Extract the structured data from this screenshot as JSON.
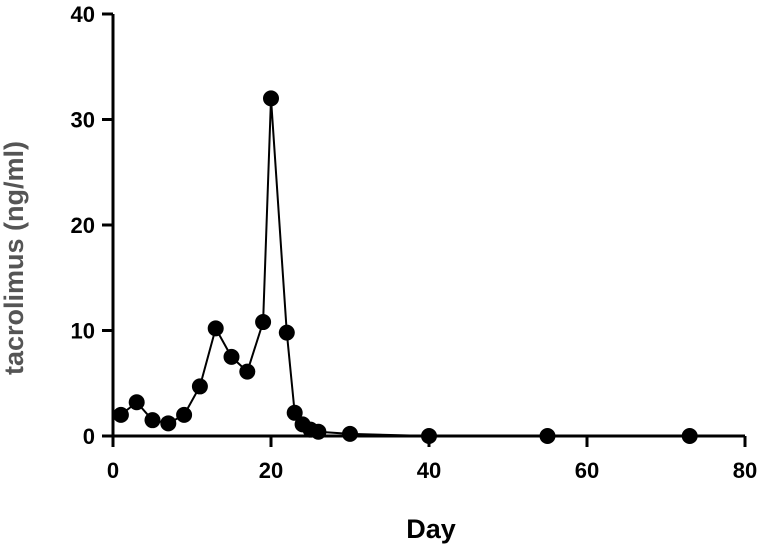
{
  "chart_data": {
    "type": "line",
    "title": "",
    "xlabel": "Day",
    "ylabel": "tacrolimus (ng/ml)",
    "xlim": [
      0,
      80
    ],
    "ylim": [
      0,
      40
    ],
    "x_ticks": [
      0,
      20,
      40,
      60,
      80
    ],
    "y_ticks": [
      0,
      10,
      20,
      30,
      40
    ],
    "x_tick_labels": [
      "0",
      "20",
      "40",
      "60",
      "80"
    ],
    "y_tick_labels": [
      "0",
      "10",
      "20",
      "30",
      "40"
    ],
    "grid": false,
    "legend": "none",
    "colors": {
      "series": "#000000",
      "ylabel": "#555555",
      "xlabel": "#000000"
    },
    "series": [
      {
        "x": [
          1,
          3,
          5,
          7,
          9,
          11,
          13,
          15,
          17,
          19,
          20,
          22,
          23,
          24,
          25,
          26,
          30,
          40,
          55,
          73
        ],
        "y": [
          2.0,
          3.2,
          1.5,
          1.2,
          2.0,
          4.7,
          10.2,
          7.5,
          6.1,
          10.8,
          32.0,
          9.8,
          2.2,
          1.1,
          0.6,
          0.4,
          0.2,
          0.0,
          0.0,
          0.0
        ]
      }
    ]
  }
}
